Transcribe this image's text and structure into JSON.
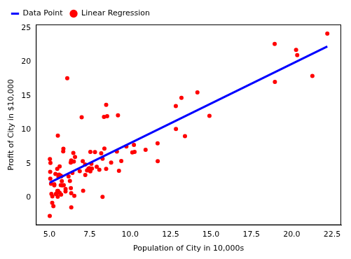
{
  "chart_data": {
    "type": "scatter",
    "x_label": "Population of City in 10,000s",
    "y_label": "Profit of City in $10,000",
    "legend": "upper left",
    "grid": false,
    "xlim": [
      4.168,
      23.062
    ],
    "ylim": [
      -4.022,
      25.489
    ],
    "xticks": [
      {
        "value": 5,
        "label": "5.0"
      },
      {
        "value": 7.5,
        "label": "7.5"
      },
      {
        "value": 10,
        "label": "10.0"
      },
      {
        "value": 12.5,
        "label": "12.5"
      },
      {
        "value": 15,
        "label": "15.0"
      },
      {
        "value": 17.5,
        "label": "17.5"
      },
      {
        "value": 20,
        "label": "20.0"
      },
      {
        "value": 22.5,
        "label": "22.5"
      }
    ],
    "yticks": [
      0,
      5,
      10,
      15,
      20,
      25
    ],
    "series": [
      {
        "name": "Data Point",
        "type": "line",
        "line_style": "solid",
        "color": "#0000ff",
        "x": [
          5.0269,
          22.203
        ],
        "values": [
          2.23,
          22.26
        ]
      },
      {
        "name": "Linear Regression",
        "type": "scatter",
        "marker": "circle",
        "color": "#ff0000",
        "x": [
          6.1101,
          5.5277,
          8.5186,
          7.0032,
          5.8598,
          8.3829,
          7.4764,
          8.5781,
          6.4862,
          5.0546,
          5.7107,
          14.164,
          5.734,
          8.4084,
          5.6407,
          5.3794,
          6.3654,
          5.1301,
          6.4296,
          7.0708,
          6.1891,
          20.27,
          5.4901,
          6.3261,
          5.5649,
          18.945,
          12.828,
          10.957,
          13.176,
          22.203,
          5.2524,
          6.5894,
          9.2482,
          5.8918,
          8.2111,
          7.9334,
          8.0959,
          5.6063,
          12.836,
          6.3534,
          5.4069,
          6.8825,
          11.708,
          5.7737,
          7.8247,
          7.0931,
          5.0702,
          5.8014,
          11.7,
          5.5416,
          7.5402,
          5.3077,
          7.4239,
          7.6031,
          6.3328,
          6.3589,
          6.2742,
          5.6397,
          9.3102,
          9.4536,
          8.8254,
          5.1793,
          21.279,
          14.908,
          18.959,
          7.2182,
          8.2951,
          10.236,
          5.4994,
          20.341,
          10.136,
          7.3345,
          6.0062,
          7.2259,
          5.0269,
          6.5479,
          7.5386,
          5.0365,
          10.274,
          5.1077,
          5.7292,
          5.1884,
          6.3557,
          9.7687,
          6.5159,
          8.5172,
          9.1802,
          6.002,
          5.5204,
          5.0594,
          5.7077,
          7.6366,
          5.8707,
          5.3054,
          8.2934,
          13.394,
          5.4369
        ],
        "values": [
          17.592,
          9.1302,
          13.662,
          11.854,
          6.8233,
          11.886,
          4.3483,
          12,
          6.5987,
          3.8166,
          3.2522,
          15.505,
          3.1551,
          7.2258,
          0.71618,
          3.5129,
          5.3048,
          0.56077,
          3.6518,
          5.3893,
          3.1386,
          21.767,
          4.263,
          5.1875,
          3.0825,
          22.638,
          13.501,
          7.0467,
          14.692,
          24.147,
          -1.22,
          5.9966,
          12.134,
          1.8495,
          6.5426,
          4.5623,
          4.1164,
          3.3928,
          10.117,
          5.4974,
          0.55657,
          3.9115,
          5.3854,
          2.4406,
          6.7318,
          1.0463,
          5.1337,
          1.844,
          8.0043,
          1.0179,
          6.7504,
          1.8396,
          4.2885,
          4.9981,
          1.4233,
          -1.4211,
          2.4756,
          4.6042,
          3.9624,
          5.4141,
          5.1694,
          -0.74279,
          17.929,
          12.054,
          17.054,
          4.8852,
          5.7442,
          7.7754,
          1.0173,
          20.992,
          6.6799,
          4.0259,
          1.2784,
          3.3411,
          -2.6807,
          0.29678,
          3.8845,
          5.7014,
          6.7526,
          2.0576,
          0.47953,
          0.20421,
          0.67861,
          7.5435,
          5.3436,
          4.2415,
          6.7981,
          0.92695,
          0.152,
          2.8214,
          1.8451,
          4.2959,
          7.2029,
          1.9869,
          0.14454,
          9.0551,
          0.61705
        ]
      }
    ]
  }
}
